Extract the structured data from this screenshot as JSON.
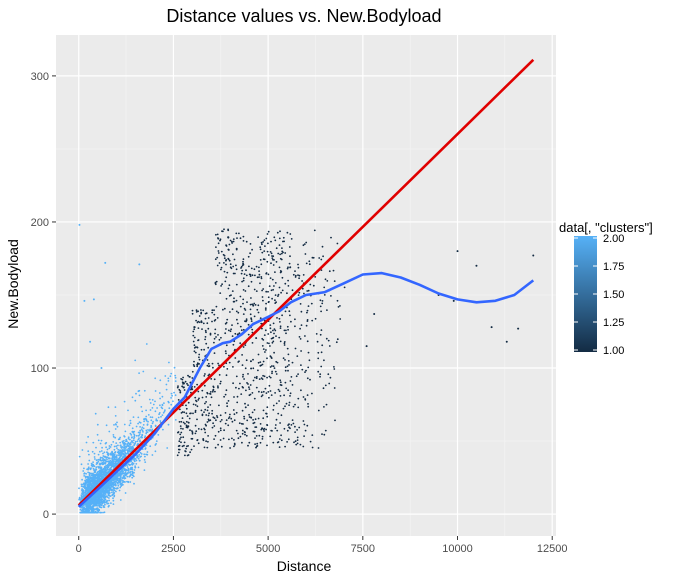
{
  "chart_data": {
    "type": "scatter",
    "title": "Distance  values vs.  New.Bodyload",
    "xlabel": "Distance",
    "ylabel": "New.Bodyload",
    "xlim": [
      -600,
      12600
    ],
    "ylim": [
      -15,
      328
    ],
    "x_ticks": [
      0,
      2500,
      5000,
      7500,
      10000,
      12500
    ],
    "x_tick_labels": [
      "0",
      "2500",
      "5000",
      "7500",
      "10000",
      "12500"
    ],
    "y_ticks": [
      0,
      100,
      200,
      300
    ],
    "y_tick_labels": [
      "0",
      "100",
      "200",
      "300"
    ],
    "grid": true,
    "legend": {
      "title": "data[, \"clusters\"]",
      "position": "right",
      "type": "colorbar",
      "range": [
        1.0,
        2.0
      ],
      "ticks": [
        1.0,
        1.25,
        1.5,
        1.75,
        2.0
      ],
      "tick_labels": [
        "1.00",
        "1.25",
        "1.50",
        "1.75",
        "2.00"
      ],
      "low_color": "#132B43",
      "high_color": "#56B1F7"
    },
    "clusters": [
      {
        "cluster_value": 2.0,
        "color": "#56B1F7",
        "description_points": "dense cloud from (0,0) to about (2500,60), slope ~0.026",
        "x_range": [
          0,
          2600
        ],
        "y_range": [
          0,
          100
        ],
        "outliers": [
          [
            20,
            198
          ],
          [
            700,
            172
          ],
          [
            1600,
            171
          ],
          [
            400,
            147
          ],
          [
            150,
            146
          ],
          [
            300,
            118
          ],
          [
            600,
            100
          ]
        ]
      },
      {
        "cluster_value": 1.0,
        "color": "#132B43",
        "x_range": [
          2500,
          7200
        ],
        "y_range": [
          40,
          200
        ],
        "outliers": [
          [
            10000,
            180
          ],
          [
            10500,
            170
          ],
          [
            9500,
            150
          ],
          [
            11600,
            127
          ],
          [
            12000,
            177
          ],
          [
            7800,
            137
          ],
          [
            7600,
            115
          ],
          [
            10900,
            128
          ],
          [
            11300,
            118
          ],
          [
            9900,
            146
          ]
        ]
      }
    ],
    "series": [
      {
        "type": "line",
        "color": "#E00000",
        "x": [
          0,
          12000
        ],
        "y": [
          6,
          311
        ]
      },
      {
        "type": "smooth",
        "color": "#3366FF",
        "x": [
          0,
          500,
          1000,
          1500,
          2000,
          2500,
          2800,
          3200,
          3500,
          3800,
          4000,
          4300,
          4600,
          5000,
          5300,
          5600,
          6000,
          6500,
          7000,
          7500,
          8000,
          8500,
          9000,
          9500,
          10000,
          10500,
          11000,
          11500,
          12000
        ],
        "y": [
          5,
          17,
          29,
          41,
          55,
          72,
          80,
          100,
          113,
          117,
          118,
          123,
          130,
          135,
          139,
          145,
          150,
          152,
          158,
          164,
          165,
          162,
          157,
          151,
          147,
          145,
          146,
          150,
          160
        ]
      }
    ]
  }
}
